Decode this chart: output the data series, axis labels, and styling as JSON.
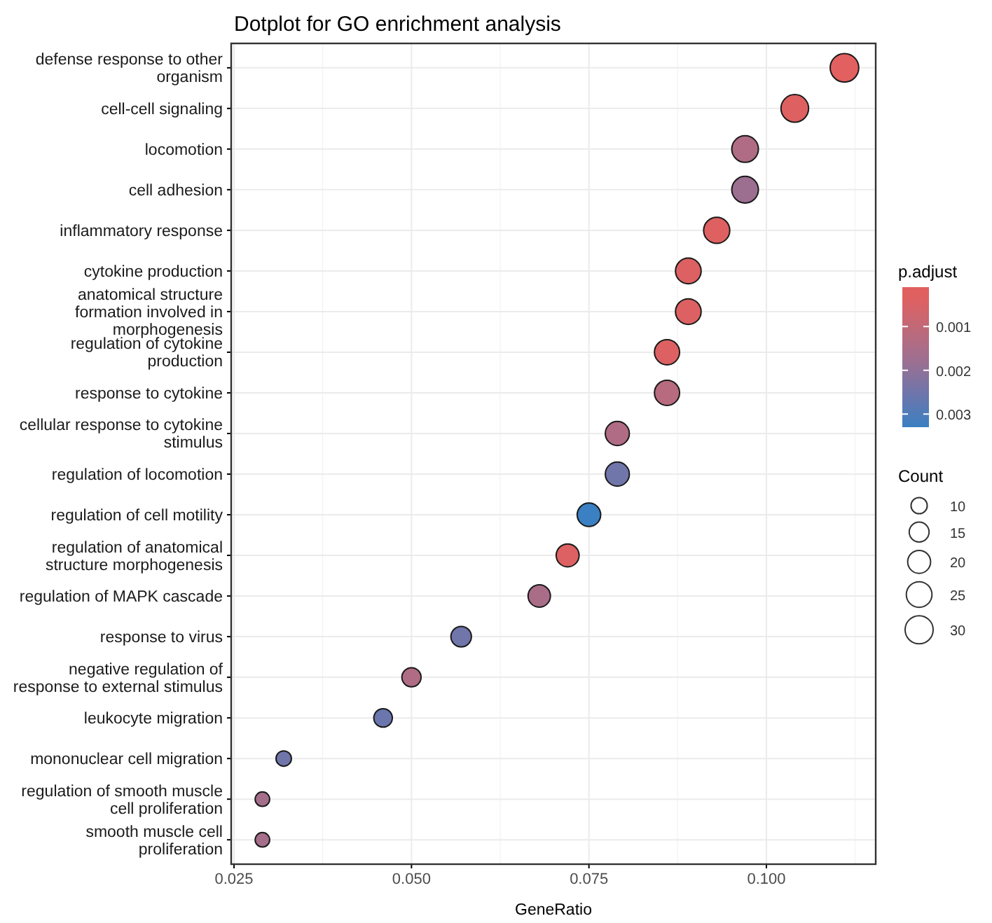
{
  "chart_data": {
    "type": "bubble",
    "title": "Dotplot for GO enrichment analysis",
    "xlabel": "GeneRatio",
    "clabel": "p.adjust",
    "legend_title": "Count",
    "categories": [
      "defense response to other organism",
      "cell-cell signaling",
      "locomotion",
      "cell adhesion",
      "inflammatory response",
      "cytokine production",
      "anatomical structure formation involved in morphogenesis",
      "regulation of cytokine production",
      "response to cytokine",
      "cellular response to cytokine stimulus",
      "regulation of locomotion",
      "regulation of cell motility",
      "regulation of anatomical structure morphogenesis",
      "regulation of MAPK cascade",
      "response to virus",
      "negative regulation of response to external stimulus",
      "leukocyte migration",
      "mononuclear cell migration",
      "regulation of smooth muscle cell proliferation",
      "smooth muscle cell proliferation"
    ],
    "values": [
      0.111,
      0.104,
      0.097,
      0.097,
      0.093,
      0.089,
      0.089,
      0.086,
      0.086,
      0.079,
      0.079,
      0.075,
      0.072,
      0.068,
      0.057,
      0.05,
      0.046,
      0.032,
      0.029,
      0.029
    ],
    "sizes": [
      31,
      29,
      27,
      27,
      26,
      25,
      25,
      24,
      24,
      22,
      22,
      21,
      20,
      19,
      16,
      14,
      13,
      9,
      8,
      8
    ],
    "size_legend": [
      10,
      15,
      20,
      25,
      30
    ],
    "cvalues": [
      0.0001,
      0.0003,
      0.0014,
      0.0018,
      0.0003,
      0.0004,
      0.0004,
      0.0004,
      0.0012,
      0.0014,
      0.0025,
      0.0033,
      0.0004,
      0.0015,
      0.0025,
      0.0014,
      0.0026,
      0.0025,
      0.0016,
      0.0016
    ],
    "colors": [
      "#e2605f",
      "#df6060",
      "#b06c84",
      "#9c6f91",
      "#df6060",
      "#dd6162",
      "#dd6162",
      "#dd6162",
      "#b86b7e",
      "#b06c84",
      "#7075aa",
      "#3a80c2",
      "#dd6162",
      "#aa6d88",
      "#7075aa",
      "#b06c84",
      "#6a76ad",
      "#7075aa",
      "#a56e8b",
      "#a56e8b"
    ],
    "clim": [
      0.0001,
      0.0033
    ],
    "cticks": [
      0.001,
      0.002,
      0.003
    ],
    "xlim": [
      0.0246,
      0.1154
    ],
    "xticks": [
      {
        "value": 0.025,
        "label": "0.025"
      },
      {
        "value": 0.05,
        "label": "0.050"
      },
      {
        "value": 0.075,
        "label": "0.075"
      },
      {
        "value": 0.1,
        "label": "0.100"
      }
    ],
    "grid": true,
    "marker": "circle",
    "orientation": "horizontal"
  }
}
